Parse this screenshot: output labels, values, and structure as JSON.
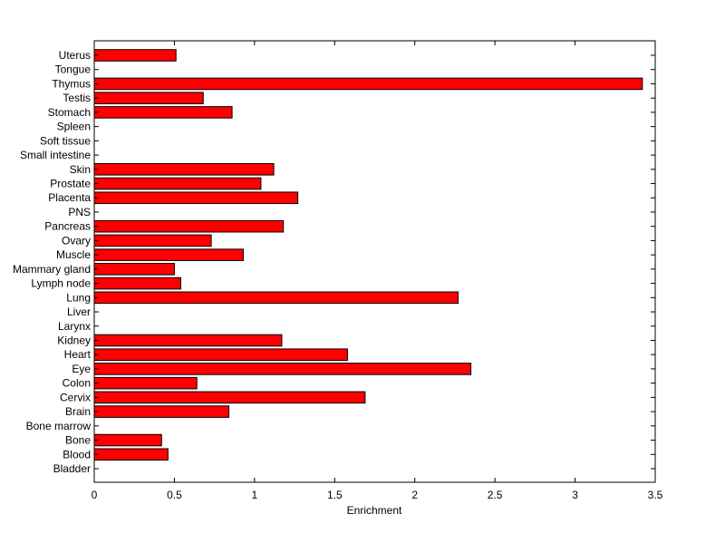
{
  "chart_data": {
    "type": "bar",
    "orientation": "horizontal",
    "title": "",
    "xlabel": "Enrichment",
    "ylabel": "",
    "xlim": [
      0,
      3.5
    ],
    "xticks": [
      0,
      0.5,
      1,
      1.5,
      2,
      2.5,
      3,
      3.5
    ],
    "xtick_labels": [
      "0",
      "0.5",
      "1",
      "1.5",
      "2",
      "2.5",
      "3",
      "3.5"
    ],
    "grid": false,
    "legend": "none",
    "bar_color": "#ff0000",
    "edge_color": "#000000",
    "categories": [
      "Uterus",
      "Tongue",
      "Thymus",
      "Testis",
      "Stomach",
      "Spleen",
      "Soft tissue",
      "Small intestine",
      "Skin",
      "Prostate",
      "Placenta",
      "PNS",
      "Pancreas",
      "Ovary",
      "Muscle",
      "Mammary gland",
      "Lymph node",
      "Lung",
      "Liver",
      "Larynx",
      "Kidney",
      "Heart",
      "Eye",
      "Colon",
      "Cervix",
      "Brain",
      "Bone marrow",
      "Bone",
      "Blood",
      "Bladder"
    ],
    "values": [
      0.51,
      0,
      3.42,
      0.68,
      0.86,
      0,
      0,
      0,
      1.12,
      1.04,
      1.27,
      0,
      1.18,
      0.73,
      0.93,
      0.5,
      0.54,
      2.27,
      0,
      0,
      1.17,
      1.58,
      2.35,
      0.64,
      1.69,
      0.84,
      0,
      0.42,
      0.46,
      0
    ]
  }
}
